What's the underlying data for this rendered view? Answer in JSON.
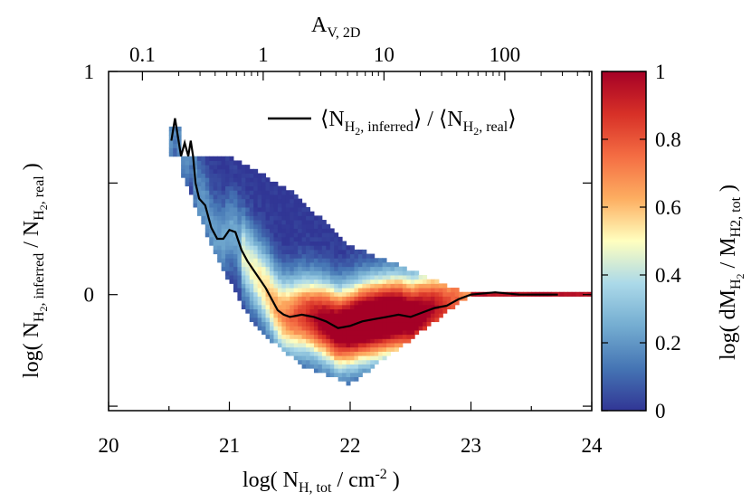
{
  "chart_data": {
    "type": "heatmap",
    "x_axis": {
      "label_main": "log( N",
      "label_sub": "H, tot",
      "label_end": " / cm",
      "label_sup": "-2",
      "label_close": " )",
      "range": [
        20,
        24
      ],
      "ticks": [
        "20",
        "21",
        "22",
        "23",
        "24"
      ]
    },
    "y_axis": {
      "label_main": "log( N",
      "label_sub1": "H",
      "label_subsub1": "2",
      "label_sub1b": ", inferred",
      "label_mid": " / N",
      "label_sub2": "H",
      "label_subsub2": "2",
      "label_sub2b": ", real",
      "label_close": " )",
      "range": [
        -1,
        1
      ],
      "tick_values": [
        -1,
        -0.5,
        0,
        0.5,
        1
      ],
      "ticks_labeled": {
        "1": "1",
        "0": "0"
      }
    },
    "top_axis": {
      "label_main": "A",
      "label_sub": "V, 2D",
      "ticks": [
        {
          "label": "0.1",
          "logNH": 20.28
        },
        {
          "label": "1",
          "logNH": 21.28
        },
        {
          "label": "10",
          "logNH": 22.28
        },
        {
          "label": "100",
          "logNH": 23.28
        }
      ]
    },
    "colorbar": {
      "label_main": "log( dM",
      "label_sub": "H",
      "label_subsub": "2",
      "label_mid": " / M",
      "label_sub2": "H2, tot",
      "label_close": " )",
      "range": [
        0,
        1
      ],
      "ticks": [
        "0",
        "0.2",
        "0.4",
        "0.6",
        "0.8",
        "1"
      ],
      "colors": [
        "#313695",
        "#4575b4",
        "#74add1",
        "#abd9e9",
        "#ffffbf",
        "#fdae61",
        "#f46d43",
        "#d73027",
        "#a50026"
      ]
    },
    "legend": {
      "position": "top-right",
      "text_open": "⟨N",
      "text_sub1": "H",
      "text_subsub1": "2",
      "text_sub1b": ", inferred",
      "text_mid": "⟩ / ⟨N",
      "text_sub2": "H",
      "text_subsub2": "2",
      "text_sub2b": ", real",
      "text_close": "⟩"
    },
    "series": [
      {
        "type": "line",
        "color": "#000000",
        "x": [
          20.52,
          20.55,
          20.6,
          20.63,
          20.66,
          20.68,
          20.7,
          20.72,
          20.75,
          20.8,
          20.85,
          20.9,
          20.95,
          21.0,
          21.05,
          21.1,
          21.15,
          21.2,
          21.3,
          21.4,
          21.45,
          21.5,
          21.6,
          21.7,
          21.8,
          21.9,
          22.0,
          22.1,
          22.2,
          22.3,
          22.4,
          22.5,
          22.6,
          22.7,
          22.8,
          22.9,
          23.0,
          23.2,
          23.4,
          23.6,
          23.72
        ],
        "y": [
          0.69,
          0.79,
          0.62,
          0.68,
          0.62,
          0.69,
          0.62,
          0.5,
          0.43,
          0.4,
          0.3,
          0.25,
          0.25,
          0.29,
          0.28,
          0.2,
          0.15,
          0.11,
          0.03,
          -0.07,
          -0.09,
          -0.1,
          -0.09,
          -0.1,
          -0.12,
          -0.15,
          -0.14,
          -0.12,
          -0.11,
          -0.1,
          -0.09,
          -0.1,
          -0.08,
          -0.06,
          -0.05,
          -0.02,
          0.0,
          0.01,
          0.0,
          0.0,
          0.0
        ]
      }
    ]
  }
}
